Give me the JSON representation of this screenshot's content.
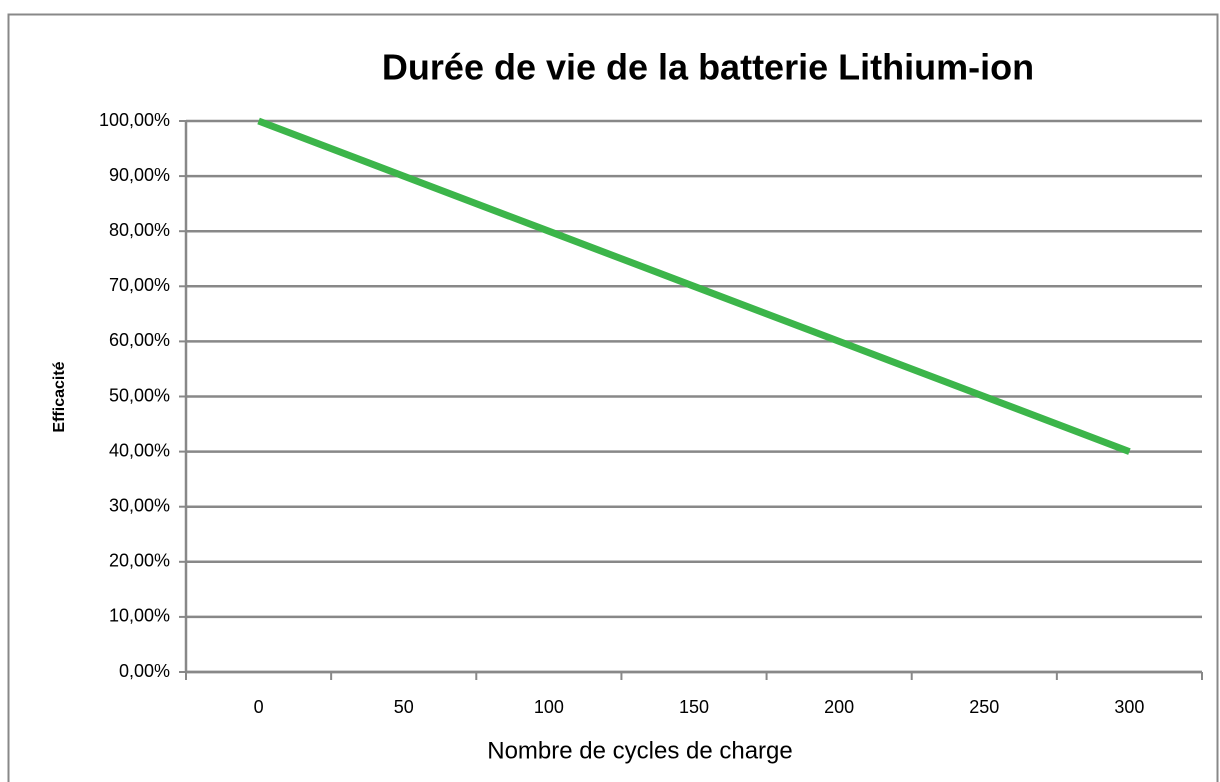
{
  "chart_data": {
    "type": "line",
    "title": "Durée de vie de la batterie Lithium-ion",
    "x_label": "Nombre de cycles de charge",
    "y_label": "Efficacité",
    "categories": [
      "0",
      "50",
      "100",
      "150",
      "200",
      "250",
      "300"
    ],
    "series": [
      {
        "name": "Efficacité",
        "color": "#3cb54a",
        "values": [
          100,
          90,
          80,
          70,
          60,
          50,
          40
        ]
      }
    ],
    "ylim": [
      0,
      100
    ],
    "yticks": [
      {
        "value": 0,
        "label": "0,00%"
      },
      {
        "value": 10,
        "label": "10,00%"
      },
      {
        "value": 20,
        "label": "20,00%"
      },
      {
        "value": 30,
        "label": "30,00%"
      },
      {
        "value": 40,
        "label": "40,00%"
      },
      {
        "value": 50,
        "label": "50,00%"
      },
      {
        "value": 60,
        "label": "60,00%"
      },
      {
        "value": 70,
        "label": "70,00%"
      },
      {
        "value": 80,
        "label": "80,00%"
      },
      {
        "value": 90,
        "label": "90,00%"
      },
      {
        "value": 100,
        "label": "100,00%"
      }
    ],
    "grid": true
  }
}
